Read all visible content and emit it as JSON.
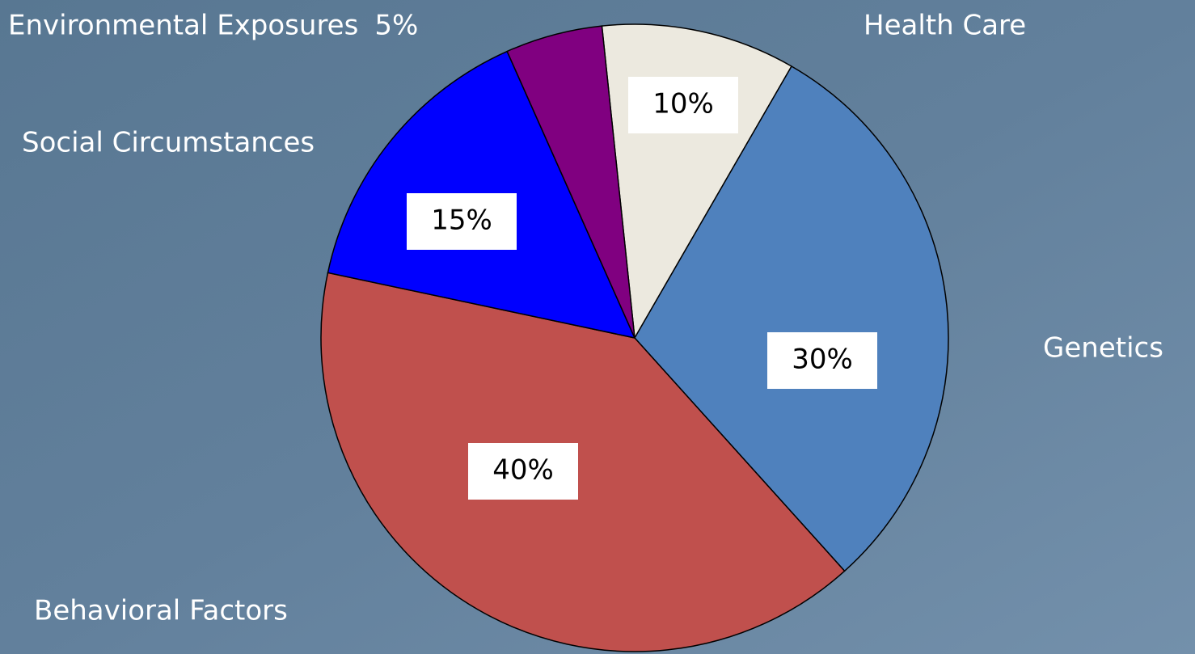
{
  "chart_data": {
    "type": "pie",
    "categories": [
      "Health Care",
      "Genetics",
      "Behavioral Factors",
      "Social Circumstances",
      "Environmental Exposures"
    ],
    "values": [
      10,
      30,
      40,
      15,
      5
    ],
    "value_labels": [
      "10%",
      "30%",
      "40%",
      "15%",
      "5%"
    ],
    "colors": [
      "#ece9df",
      "#4f81bd",
      "#c0504d",
      "#0000ff",
      "#800080"
    ]
  }
}
